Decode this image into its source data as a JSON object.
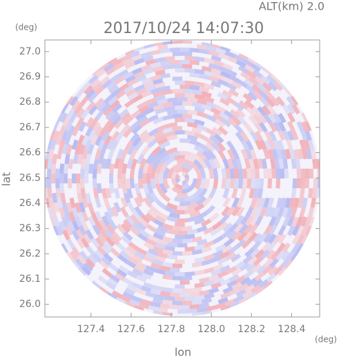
{
  "chart_data": {
    "type": "ppi",
    "title": "2017/10/24 14:07:30",
    "subtitle": "ALT(km) 2.0",
    "x_label": "lon",
    "y_label": "lat",
    "x_unit": "(deg)",
    "y_unit": "(deg)",
    "xlim": [
      127.17,
      128.54
    ],
    "ylim": [
      25.95,
      27.046
    ],
    "xticks": [
      127.4,
      127.6,
      127.8,
      {
        "value": 128,
        "label": "128.0"
      },
      128.2,
      128.4
    ],
    "yticks": [
      {
        "value": 26,
        "label": "26.0"
      },
      26.1,
      26.2,
      26.3,
      26.4,
      26.5,
      26.6,
      26.7,
      26.8,
      26.9,
      {
        "value": 27,
        "label": "27.0"
      }
    ]
  }
}
